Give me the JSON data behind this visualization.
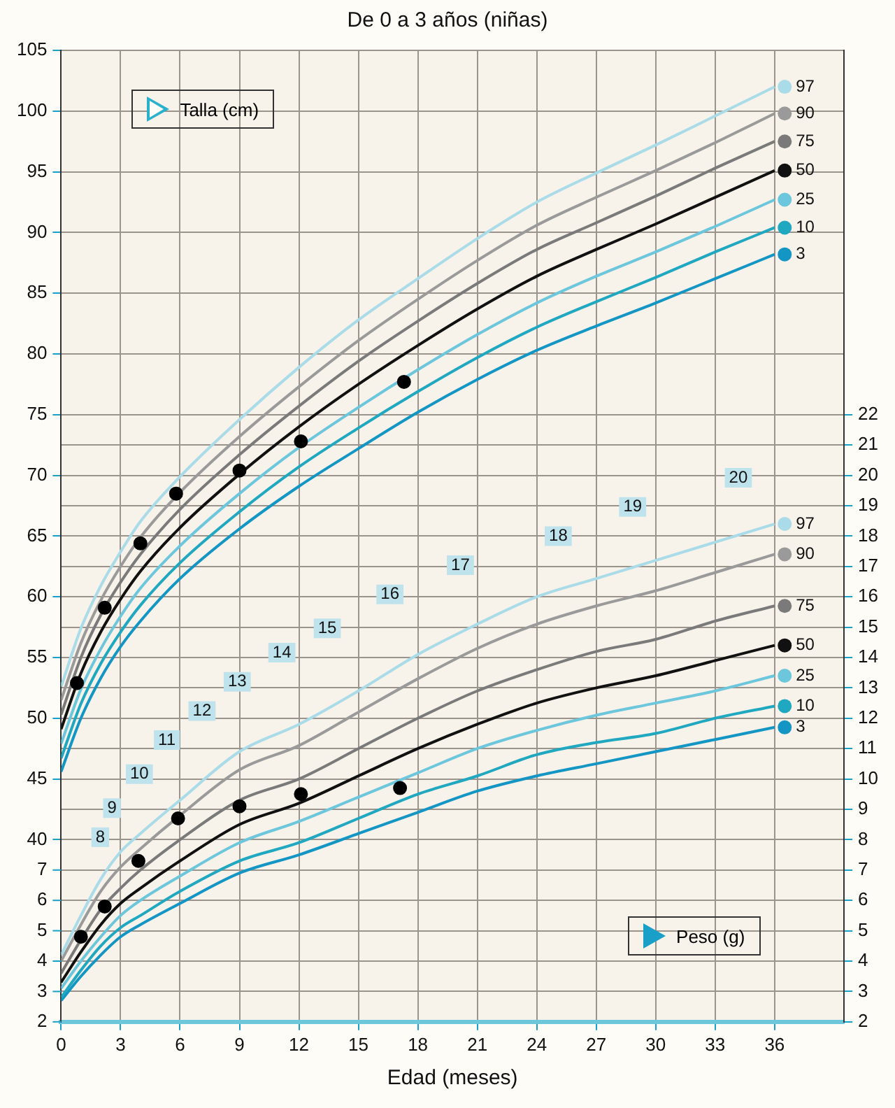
{
  "chart_data": {
    "type": "line",
    "title": "De 0 a 3 años (niñas)",
    "xlabel": "Edad (meses)",
    "x": [
      0,
      1,
      2,
      3,
      4,
      6,
      9,
      12,
      15,
      18,
      21,
      24,
      27,
      30,
      33,
      36
    ],
    "xlim": [
      0,
      39.5
    ],
    "xticks": [
      0,
      3,
      6,
      9,
      12,
      15,
      18,
      21,
      24,
      27,
      30,
      33,
      36
    ],
    "ylim": [
      25,
      105
    ],
    "yticks": [
      40,
      45,
      50,
      55,
      60,
      65,
      70,
      75,
      80,
      85,
      90,
      95,
      100,
      105
    ],
    "y2lim": [
      2,
      34
    ],
    "y2ticks": [
      2,
      3,
      4,
      5,
      6,
      7,
      8,
      9,
      10,
      11,
      12,
      13,
      14,
      15,
      16,
      17,
      18,
      19,
      20,
      21,
      22
    ],
    "y3lim": [
      2,
      34
    ],
    "y3ticks": [
      2,
      3,
      4,
      5,
      6,
      7
    ],
    "grid": true,
    "legend": "right",
    "marker": "none",
    "line_style": "solid",
    "series": [
      {
        "name": "97",
        "color": "#a9dbe8",
        "axis": "y",
        "values": [
          52.6,
          57.4,
          60.9,
          63.7,
          66.2,
          69.9,
          74.6,
          78.9,
          82.8,
          86.2,
          89.5,
          92.5,
          94.9,
          97.2,
          99.6,
          102.0
        ]
      },
      {
        "name": "90",
        "color": "#9a9a9a",
        "axis": "y",
        "values": [
          51.5,
          56.2,
          59.7,
          62.5,
          64.9,
          68.6,
          73.2,
          77.3,
          81.1,
          84.5,
          87.7,
          90.6,
          92.9,
          95.1,
          97.4,
          99.8
        ]
      },
      {
        "name": "75",
        "color": "#7a7a7a",
        "axis": "y",
        "values": [
          50.3,
          55.0,
          58.5,
          61.2,
          63.5,
          67.2,
          71.7,
          75.7,
          79.4,
          82.7,
          85.8,
          88.6,
          90.8,
          93.0,
          95.3,
          97.5
        ]
      },
      {
        "name": "50",
        "color": "#111111",
        "axis": "y",
        "values": [
          49.1,
          53.7,
          57.1,
          59.8,
          62.1,
          65.7,
          70.1,
          74.0,
          77.5,
          80.7,
          83.7,
          86.4,
          88.6,
          90.7,
          92.9,
          95.1
        ]
      },
      {
        "name": "25",
        "color": "#6cc6dc",
        "axis": "y",
        "values": [
          47.9,
          52.4,
          55.7,
          58.4,
          60.7,
          64.2,
          68.5,
          72.3,
          75.6,
          78.7,
          81.6,
          84.2,
          86.4,
          88.4,
          90.5,
          92.7
        ]
      },
      {
        "name": "10",
        "color": "#20a8c0",
        "axis": "y",
        "values": [
          46.7,
          51.2,
          54.5,
          57.1,
          59.3,
          62.8,
          67.0,
          70.7,
          73.9,
          76.9,
          79.7,
          82.2,
          84.3,
          86.3,
          88.4,
          90.4
        ]
      },
      {
        "name": "3",
        "color": "#1496c4",
        "axis": "y",
        "values": [
          45.6,
          50.0,
          53.3,
          55.9,
          58.0,
          61.5,
          65.6,
          69.1,
          72.2,
          75.2,
          77.9,
          80.3,
          82.3,
          84.2,
          86.2,
          88.2
        ]
      },
      {
        "name": "97",
        "color": "#a9dbe8",
        "axis": "y2",
        "values": [
          4.2,
          5.5,
          6.7,
          7.6,
          8.2,
          9.3,
          10.9,
          11.8,
          12.9,
          14.1,
          15.1,
          16.0,
          16.6,
          17.2,
          17.8,
          18.4
        ]
      },
      {
        "name": "90",
        "color": "#9a9a9a",
        "axis": "y2",
        "values": [
          4.0,
          5.2,
          6.3,
          7.1,
          7.7,
          8.8,
          10.3,
          11.1,
          12.2,
          13.3,
          14.3,
          15.1,
          15.7,
          16.2,
          16.8,
          17.4
        ]
      },
      {
        "name": "75",
        "color": "#7a7a7a",
        "axis": "y2",
        "values": [
          3.6,
          4.7,
          5.7,
          6.4,
          7.0,
          8.0,
          9.3,
          10.0,
          11.0,
          12.0,
          12.9,
          13.6,
          14.2,
          14.6,
          15.2,
          15.7
        ]
      },
      {
        "name": "50",
        "color": "#111111",
        "axis": "y2",
        "values": [
          3.3,
          4.3,
          5.2,
          5.9,
          6.4,
          7.3,
          8.5,
          9.2,
          10.1,
          11.0,
          11.8,
          12.5,
          13.0,
          13.4,
          13.9,
          14.4
        ]
      },
      {
        "name": "25",
        "color": "#6cc6dc",
        "axis": "y2",
        "values": [
          3.1,
          4.0,
          4.8,
          5.5,
          6.0,
          6.8,
          7.9,
          8.6,
          9.4,
          10.2,
          11.0,
          11.6,
          12.1,
          12.5,
          12.9,
          13.4
        ]
      },
      {
        "name": "10",
        "color": "#20a8c0",
        "axis": "y2",
        "values": [
          2.8,
          3.7,
          4.5,
          5.1,
          5.5,
          6.3,
          7.3,
          7.9,
          8.7,
          9.5,
          10.1,
          10.8,
          11.2,
          11.5,
          12.0,
          12.4
        ]
      },
      {
        "name": "3",
        "color": "#1496c4",
        "axis": "y2",
        "values": [
          2.7,
          3.5,
          4.2,
          4.8,
          5.2,
          5.9,
          6.9,
          7.5,
          8.2,
          8.9,
          9.6,
          10.1,
          10.5,
          10.9,
          11.3,
          11.7
        ]
      },
      {
        "type": "scatter",
        "marker": "circle",
        "color": "#000000",
        "axis": "y",
        "x": [
          0.8,
          2.2,
          4.0,
          5.8,
          9.0,
          12.1,
          17.3
        ],
        "values": [
          52.9,
          59.1,
          64.4,
          68.5,
          70.4,
          72.8,
          77.7
        ]
      },
      {
        "type": "scatter",
        "marker": "circle",
        "color": "#000000",
        "axis": "y2",
        "x": [
          1.0,
          2.2,
          3.9,
          5.9,
          9.0,
          12.1,
          17.1
        ],
        "values": [
          4.8,
          5.8,
          7.3,
          8.7,
          9.1,
          9.5,
          9.7
        ]
      }
    ],
    "annotations": [
      "Talla (cm)",
      "Peso (g)",
      "8",
      "9",
      "10",
      "11",
      "12",
      "13",
      "14",
      "15",
      "16",
      "17",
      "18",
      "19",
      "20"
    ]
  }
}
